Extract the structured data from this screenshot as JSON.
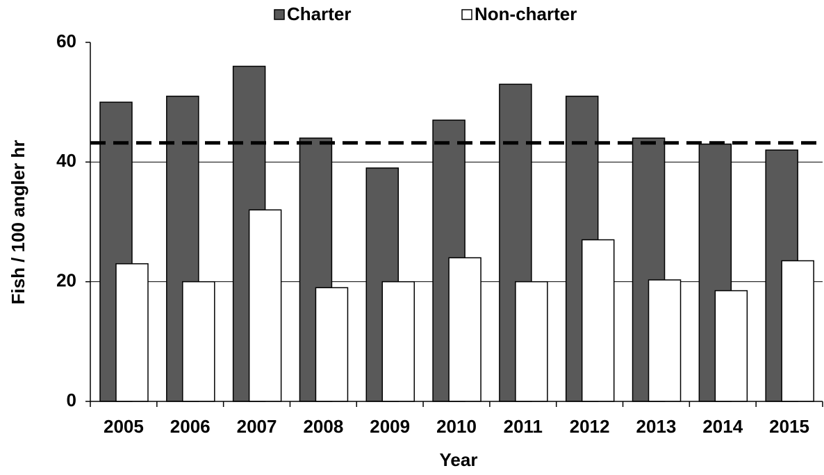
{
  "chart_data": {
    "type": "bar",
    "x_label": "Year",
    "y_label": "Fish / 100 angler hr",
    "categories": [
      "2005",
      "2006",
      "2007",
      "2008",
      "2009",
      "2010",
      "2011",
      "2012",
      "2013",
      "2014",
      "2015"
    ],
    "series": [
      {
        "name": "Charter",
        "color": "#595959",
        "values": [
          50,
          51,
          56,
          44,
          39,
          47,
          53,
          51,
          44,
          43,
          42
        ]
      },
      {
        "name": "Non-charter",
        "color": "#ffffff",
        "values": [
          23,
          20,
          32,
          19,
          20,
          24,
          20,
          27,
          20.3,
          18.5,
          23.5
        ]
      }
    ],
    "reference_line": 43.2,
    "ylim": [
      0,
      60
    ],
    "yticks": [
      0,
      20,
      40,
      60
    ],
    "grid": true,
    "legend": "top"
  }
}
